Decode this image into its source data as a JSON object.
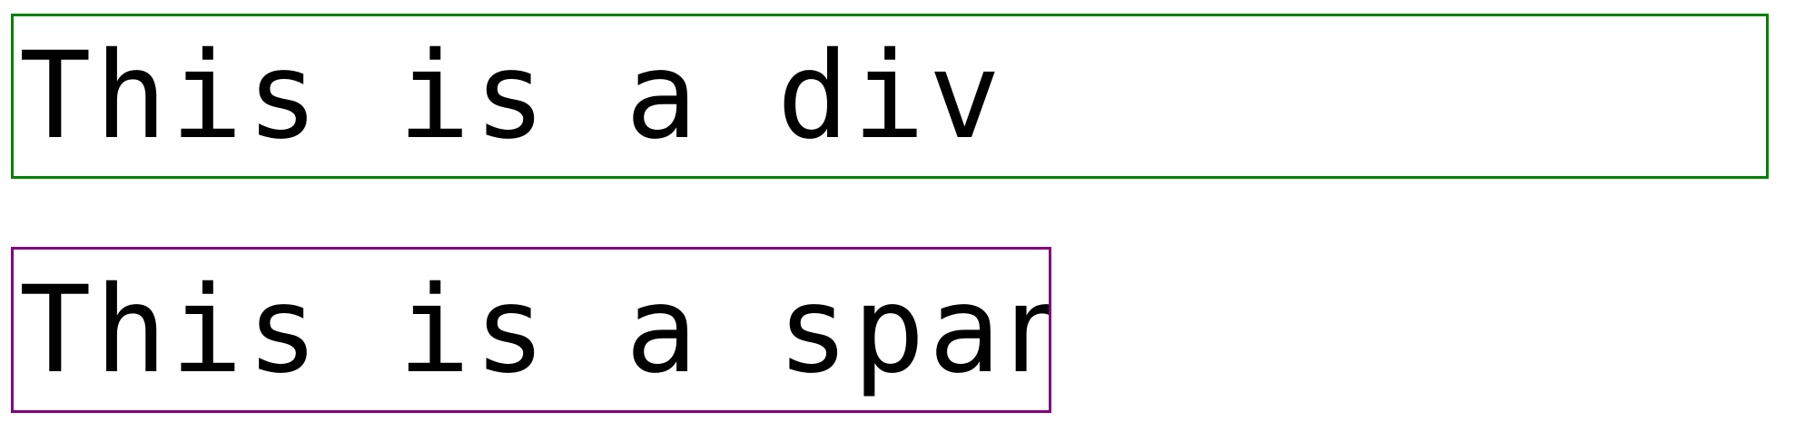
{
  "blocks": {
    "div_text": "This is a div",
    "span_text": "This is a span"
  },
  "colors": {
    "div_border": "#008000",
    "span_border": "#800080",
    "text": "#000000",
    "background": "#ffffff"
  }
}
